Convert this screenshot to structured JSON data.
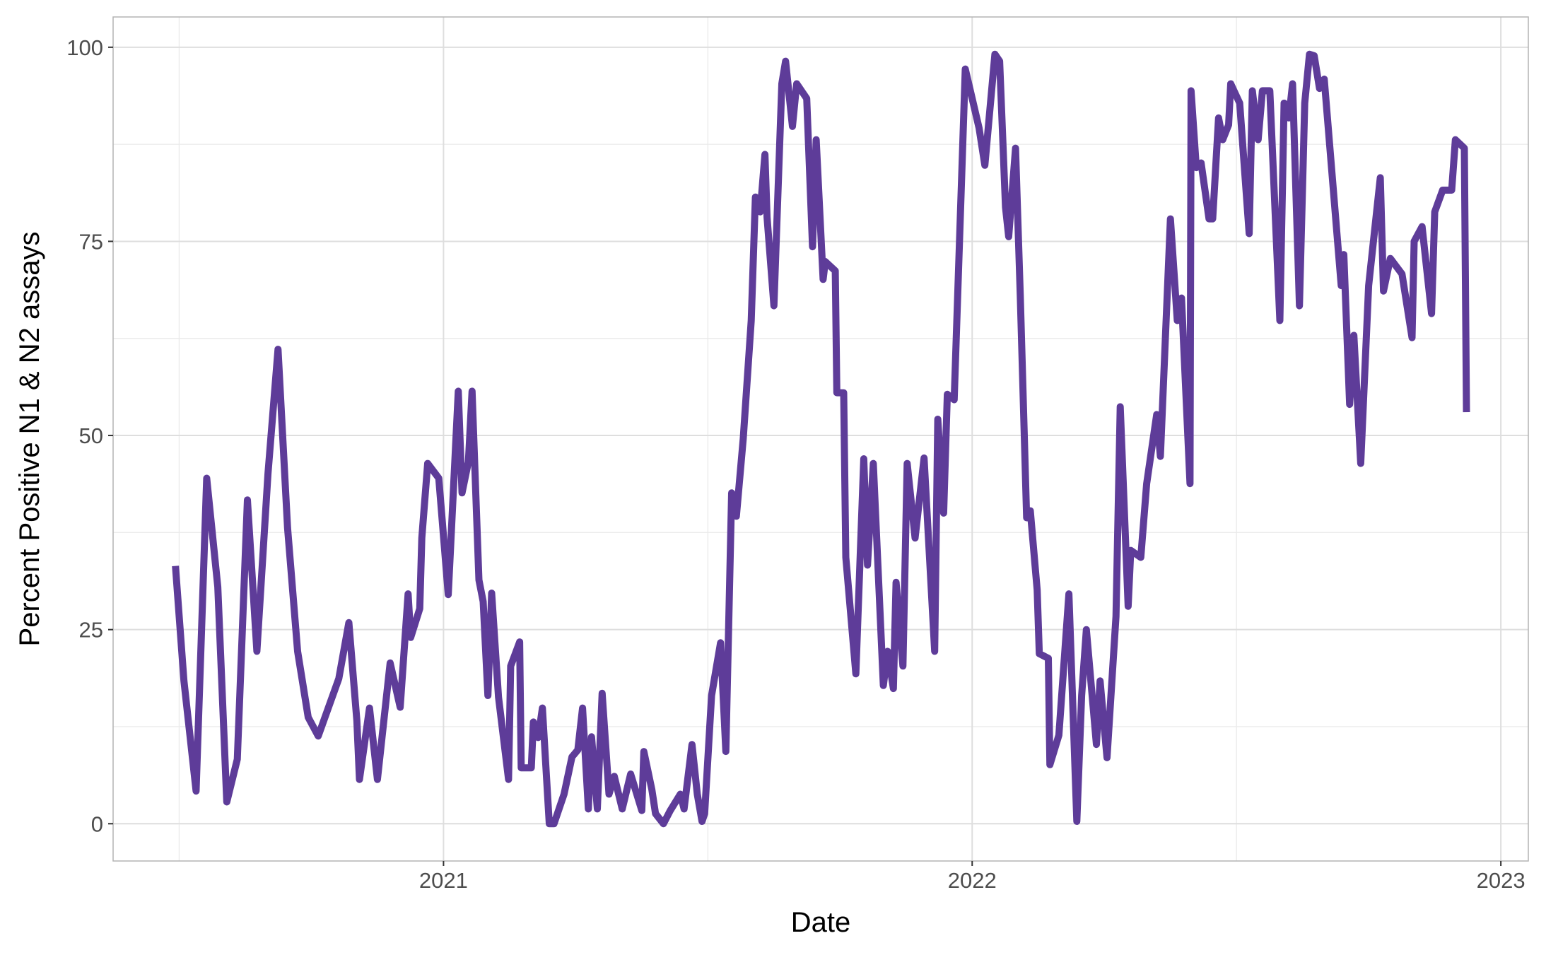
{
  "chart_data": {
    "type": "line",
    "x_label": "Date",
    "y_label": "Percent Positive N1 & N2 assays",
    "xlim": [
      2020.375,
      2023.052
    ],
    "xticks": [
      2021,
      2022,
      2023
    ],
    "ylim": [
      -4.8,
      103.9
    ],
    "yticks": [
      0,
      25,
      50,
      75,
      100
    ],
    "grid": true,
    "series": [
      {
        "color": "#5e3c99",
        "x": [
          2020.493,
          2020.509,
          2020.532,
          2020.552,
          2020.573,
          2020.59,
          2020.61,
          2020.629,
          2020.647,
          2020.668,
          2020.687,
          2020.705,
          2020.724,
          2020.744,
          2020.763,
          2020.802,
          2020.821,
          2020.836,
          2020.841,
          2020.86,
          2020.875,
          2020.899,
          2020.918,
          2020.933,
          2020.938,
          2020.955,
          2020.959,
          2020.97,
          2020.991,
          2021.009,
          2021.028,
          2021.035,
          2021.047,
          2021.054,
          2021.067,
          2021.075,
          2021.084,
          2021.091,
          2021.104,
          2021.123,
          2021.127,
          2021.144,
          2021.147,
          2021.166,
          2021.17,
          2021.179,
          2021.187,
          2021.2,
          2021.209,
          2021.228,
          2021.243,
          2021.254,
          2021.263,
          2021.274,
          2021.28,
          2021.291,
          2021.3,
          2021.313,
          2021.323,
          2021.338,
          2021.354,
          2021.375,
          2021.379,
          2021.394,
          2021.401,
          2021.416,
          2021.429,
          2021.448,
          2021.455,
          2021.47,
          2021.48,
          2021.489,
          2021.494,
          2021.507,
          2021.524,
          2021.534,
          2021.545,
          2021.554,
          2021.567,
          2021.582,
          2021.59,
          2021.599,
          2021.608,
          2021.612,
          2021.625,
          2021.64,
          2021.647,
          2021.66,
          2021.668,
          2021.687,
          2021.698,
          2021.705,
          2021.718,
          2021.722,
          2021.741,
          2021.744,
          2021.757,
          2021.761,
          2021.78,
          2021.795,
          2021.802,
          2021.813,
          2021.832,
          2021.84,
          2021.851,
          2021.856,
          2021.869,
          2021.877,
          2021.892,
          2021.909,
          2021.929,
          2021.935,
          2021.946,
          2021.953,
          2021.966,
          2021.987,
          2022.013,
          2022.024,
          2022.043,
          2022.052,
          2022.063,
          2022.069,
          2022.082,
          2022.091,
          2022.103,
          2022.11,
          2022.123,
          2022.127,
          2022.144,
          2022.147,
          2022.164,
          2022.183,
          2022.198,
          2022.207,
          2022.216,
          2022.235,
          2022.242,
          2022.255,
          2022.272,
          2022.28,
          2022.295,
          2022.3,
          2022.319,
          2022.33,
          2022.349,
          2022.356,
          2022.375,
          2022.388,
          2022.396,
          2022.412,
          2022.414,
          2022.424,
          2022.433,
          2022.448,
          2022.455,
          2022.466,
          2022.474,
          2022.485,
          2022.489,
          2022.506,
          2022.524,
          2022.53,
          2022.541,
          2022.549,
          2022.563,
          2022.582,
          2022.59,
          2022.599,
          2022.606,
          2022.619,
          2022.629,
          2022.638,
          2022.647,
          2022.657,
          2022.666,
          2022.698,
          2022.703,
          2022.714,
          2022.722,
          2022.735,
          2022.75,
          2022.772,
          2022.778,
          2022.791,
          2022.813,
          2022.832,
          2022.836,
          2022.851,
          2022.869,
          2022.875,
          2022.89,
          2022.907,
          2022.914,
          2022.931,
          2022.935
        ],
        "values": [
          33.2,
          18.4,
          4.2,
          44.5,
          30.5,
          2.8,
          8.3,
          41.7,
          22.2,
          45.1,
          61.1,
          38.1,
          22.2,
          13.7,
          11.3,
          18.7,
          25.9,
          13.3,
          5.7,
          14.9,
          5.7,
          20.7,
          15.0,
          29.6,
          24.0,
          27.7,
          36.8,
          46.4,
          44.5,
          29.5,
          55.7,
          42.6,
          46.6,
          55.7,
          31.4,
          28.6,
          16.5,
          29.7,
          16.3,
          5.7,
          20.3,
          23.4,
          7.2,
          7.2,
          13.1,
          11.1,
          14.9,
          0,
          0,
          3.8,
          8.6,
          9.5,
          14.9,
          1.9,
          11.2,
          1.9,
          16.8,
          3.8,
          6.1,
          1.9,
          6.4,
          1.7,
          9.3,
          4.4,
          1.3,
          0,
          1.7,
          3.8,
          1.9,
          10.2,
          3.8,
          0.3,
          1.3,
          16.5,
          23.3,
          9.3,
          42.6,
          39.6,
          49.6,
          64.8,
          80.7,
          78.8,
          86.2,
          78.1,
          66.7,
          95.3,
          98.2,
          89.8,
          95.3,
          93.4,
          74.3,
          88.1,
          70.1,
          72.4,
          71.2,
          55.5,
          55.5,
          34.3,
          19.3,
          47.0,
          33.3,
          46.4,
          17.8,
          22.2,
          17.4,
          31.1,
          20.3,
          46.4,
          36.8,
          47.1,
          22.2,
          52.1,
          40.0,
          55.3,
          54.6,
          97.2,
          89.6,
          84.8,
          99.1,
          98.2,
          79.4,
          75.6,
          87.0,
          68.0,
          39.4,
          40.3,
          30.1,
          21.9,
          21.3,
          7.6,
          11.4,
          29.6,
          0.3,
          16.5,
          25.0,
          10.2,
          18.4,
          8.5,
          26.7,
          53.7,
          28.0,
          35.2,
          34.3,
          43.8,
          52.7,
          47.3,
          77.9,
          64.8,
          67.7,
          43.8,
          94.4,
          84.5,
          85.1,
          77.9,
          77.9,
          90.9,
          88.1,
          90.0,
          95.3,
          92.8,
          76.0,
          94.4,
          88.1,
          94.4,
          94.4,
          64.8,
          92.8,
          90.9,
          95.3,
          66.7,
          92.8,
          99.1,
          98.9,
          94.7,
          95.9,
          69.3,
          73.3,
          54.0,
          62.9,
          46.4,
          69.3,
          83.2,
          68.6,
          72.8,
          70.8,
          62.6,
          75.0,
          76.9,
          65.7,
          78.8,
          81.6,
          81.6,
          88.1,
          87.0,
          53.0
        ]
      }
    ]
  }
}
